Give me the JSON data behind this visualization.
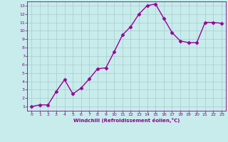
{
  "x": [
    0,
    1,
    2,
    3,
    4,
    5,
    6,
    7,
    8,
    9,
    10,
    11,
    12,
    13,
    14,
    15,
    16,
    17,
    18,
    19,
    20,
    21,
    22,
    23
  ],
  "y": [
    1.0,
    1.2,
    1.2,
    2.8,
    4.2,
    2.5,
    3.2,
    4.3,
    5.5,
    5.6,
    7.5,
    9.5,
    10.5,
    12.0,
    13.0,
    13.2,
    11.5,
    9.8,
    8.8,
    8.6,
    8.6,
    11.0,
    11.0,
    10.9
  ],
  "line_color": "#990099",
  "marker": "D",
  "marker_size": 2.5,
  "background_color": "#c8ecec",
  "grid_color": "#a8cccc",
  "xlabel": "Windchill (Refroidissement éolien,°C)",
  "xlim": [
    -0.5,
    23.5
  ],
  "ylim": [
    0.5,
    13.5
  ],
  "yticks": [
    1,
    2,
    3,
    4,
    5,
    6,
    7,
    8,
    9,
    10,
    11,
    12,
    13
  ],
  "xticks": [
    0,
    1,
    2,
    3,
    4,
    5,
    6,
    7,
    8,
    9,
    10,
    11,
    12,
    13,
    14,
    15,
    16,
    17,
    18,
    19,
    20,
    21,
    22,
    23
  ],
  "tick_color": "#880088",
  "label_color": "#880088",
  "axis_bg": "#c8ecec",
  "spine_color": "#880088",
  "line_width": 1.0
}
